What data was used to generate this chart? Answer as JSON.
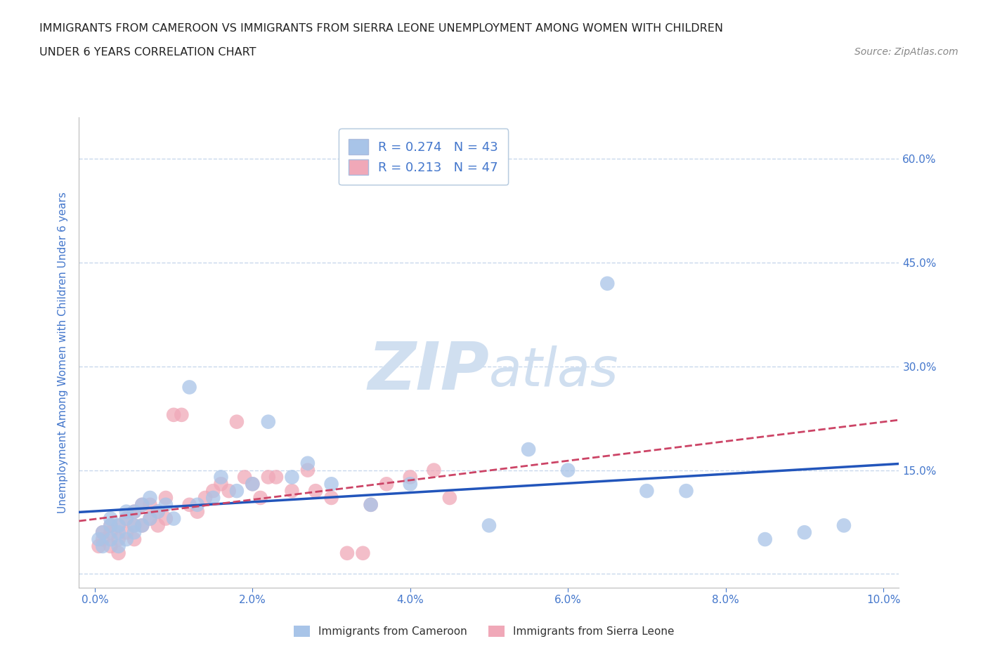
{
  "title_line1": "IMMIGRANTS FROM CAMEROON VS IMMIGRANTS FROM SIERRA LEONE UNEMPLOYMENT AMONG WOMEN WITH CHILDREN",
  "title_line2": "UNDER 6 YEARS CORRELATION CHART",
  "source": "Source: ZipAtlas.com",
  "ylabel": "Unemployment Among Women with Children Under 6 years",
  "xlim": [
    -0.002,
    0.102
  ],
  "ylim": [
    -0.02,
    0.66
  ],
  "xticks": [
    0.0,
    0.02,
    0.04,
    0.06,
    0.08,
    0.1
  ],
  "xticklabels": [
    "0.0%",
    "2.0%",
    "4.0%",
    "6.0%",
    "8.0%",
    "10.0%"
  ],
  "yticks": [
    0.0,
    0.15,
    0.3,
    0.45,
    0.6
  ],
  "yticklabels": [
    "",
    "15.0%",
    "30.0%",
    "45.0%",
    "60.0%"
  ],
  "R_cameroon": 0.274,
  "N_cameroon": 43,
  "R_sierraleone": 0.213,
  "N_sierraleone": 47,
  "color_cameroon": "#a8c4e8",
  "color_sierraleone": "#f0a8b8",
  "line_color_cameroon": "#2255bb",
  "line_color_sierraleone": "#cc4466",
  "watermark_zip": "ZIP",
  "watermark_atlas": "atlas",
  "watermark_color": "#d0dff0",
  "legend_label_cameroon": "Immigrants from Cameroon",
  "legend_label_sierraleone": "Immigrants from Sierra Leone",
  "cameroon_x": [
    0.0005,
    0.001,
    0.001,
    0.002,
    0.002,
    0.002,
    0.003,
    0.003,
    0.003,
    0.004,
    0.004,
    0.004,
    0.005,
    0.005,
    0.005,
    0.006,
    0.006,
    0.007,
    0.007,
    0.008,
    0.009,
    0.01,
    0.012,
    0.013,
    0.015,
    0.016,
    0.018,
    0.02,
    0.022,
    0.025,
    0.027,
    0.03,
    0.035,
    0.04,
    0.05,
    0.055,
    0.06,
    0.065,
    0.07,
    0.075,
    0.085,
    0.09,
    0.095
  ],
  "cameroon_y": [
    0.05,
    0.04,
    0.06,
    0.05,
    0.07,
    0.08,
    0.04,
    0.06,
    0.07,
    0.05,
    0.08,
    0.09,
    0.06,
    0.07,
    0.09,
    0.07,
    0.1,
    0.08,
    0.11,
    0.09,
    0.1,
    0.08,
    0.27,
    0.1,
    0.11,
    0.14,
    0.12,
    0.13,
    0.22,
    0.14,
    0.16,
    0.13,
    0.1,
    0.13,
    0.07,
    0.18,
    0.15,
    0.42,
    0.12,
    0.12,
    0.05,
    0.06,
    0.07
  ],
  "sierraleone_x": [
    0.0005,
    0.001,
    0.001,
    0.002,
    0.002,
    0.002,
    0.003,
    0.003,
    0.003,
    0.004,
    0.004,
    0.005,
    0.005,
    0.005,
    0.006,
    0.006,
    0.007,
    0.007,
    0.008,
    0.008,
    0.009,
    0.009,
    0.01,
    0.011,
    0.012,
    0.013,
    0.014,
    0.015,
    0.016,
    0.017,
    0.018,
    0.019,
    0.02,
    0.021,
    0.022,
    0.023,
    0.025,
    0.027,
    0.028,
    0.03,
    0.032,
    0.034,
    0.035,
    0.037,
    0.04,
    0.043,
    0.045
  ],
  "sierraleone_y": [
    0.04,
    0.05,
    0.06,
    0.04,
    0.06,
    0.07,
    0.03,
    0.05,
    0.07,
    0.06,
    0.08,
    0.05,
    0.07,
    0.09,
    0.07,
    0.1,
    0.08,
    0.1,
    0.07,
    0.09,
    0.11,
    0.08,
    0.23,
    0.23,
    0.1,
    0.09,
    0.11,
    0.12,
    0.13,
    0.12,
    0.22,
    0.14,
    0.13,
    0.11,
    0.14,
    0.14,
    0.12,
    0.15,
    0.12,
    0.11,
    0.03,
    0.03,
    0.1,
    0.13,
    0.14,
    0.15,
    0.11
  ],
  "background_color": "#ffffff",
  "grid_color": "#c8d8ec",
  "tick_color": "#4477cc",
  "title_color": "#222222",
  "axis_color": "#bbbbbb"
}
